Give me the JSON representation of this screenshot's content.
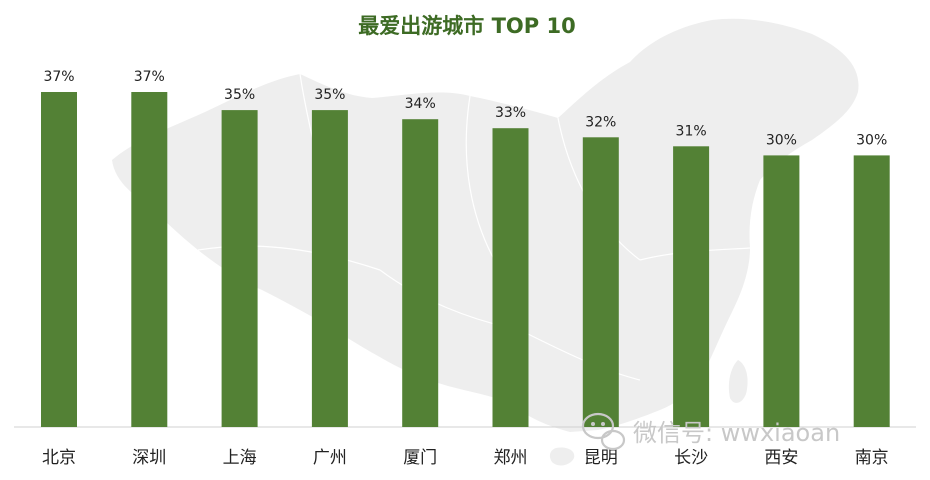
{
  "chart_data": {
    "type": "bar",
    "title": "最爱出游城市 TOP 10",
    "categories": [
      "北京",
      "深圳",
      "上海",
      "广州",
      "厦门",
      "郑州",
      "昆明",
      "长沙",
      "西安",
      "南京"
    ],
    "values": [
      37,
      37,
      35,
      35,
      34,
      33,
      32,
      31,
      30,
      30
    ],
    "data_labels": [
      "37%",
      "37%",
      "35%",
      "35%",
      "34%",
      "33%",
      "32%",
      "31%",
      "30%",
      "30%"
    ],
    "ylim": [
      0,
      37
    ],
    "grid": false,
    "legend": "none"
  },
  "watermark": {
    "text": "微信号: wwxiaoan"
  },
  "colors": {
    "bar": "#538135",
    "title": "#3d6b24",
    "text": "#222222",
    "axis": "#d0d0d0",
    "map": "#eeeeee",
    "watermark": "#c8c8c8"
  }
}
